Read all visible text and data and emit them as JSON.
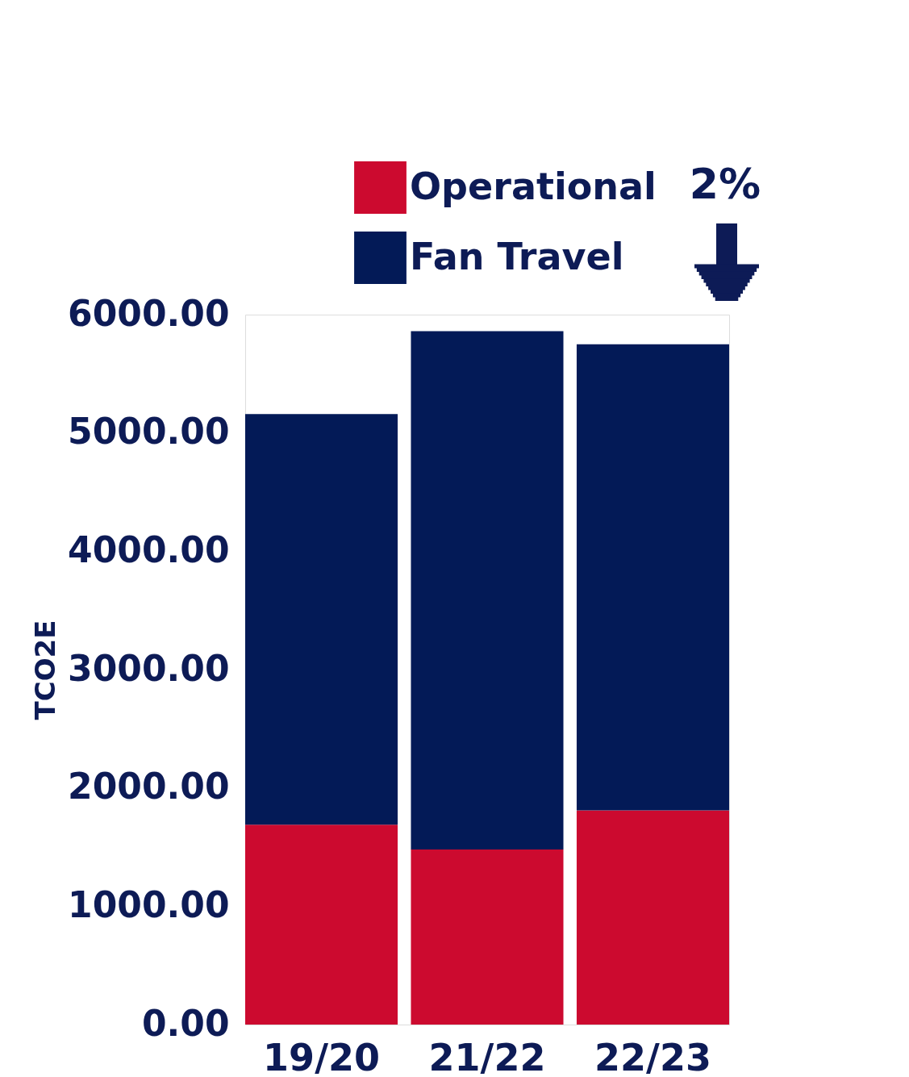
{
  "chart_data": {
    "type": "bar",
    "stacked": true,
    "categories": [
      "19/20",
      "21/22",
      "22/23"
    ],
    "series": [
      {
        "name": "Operational",
        "color": "#cc0a2f",
        "values": [
          1690,
          1480,
          1810
        ]
      },
      {
        "name": "Fan Travel",
        "color": "#031a57",
        "values": [
          3470,
          4380,
          3940
        ]
      }
    ],
    "ylabel": "TCO2E",
    "ylim": [
      0,
      6000
    ],
    "yticks": [
      {
        "value": 0,
        "label": "0.00"
      },
      {
        "value": 1000,
        "label": "1000.00"
      },
      {
        "value": 2000,
        "label": "2000.00"
      },
      {
        "value": 3000,
        "label": "3000.00"
      },
      {
        "value": 4000,
        "label": "4000.00"
      },
      {
        "value": 5000,
        "label": "5000.00"
      },
      {
        "value": 6000,
        "label": "6000.00"
      }
    ],
    "annotations": [
      "2%"
    ],
    "legend": "top",
    "grid": false
  }
}
